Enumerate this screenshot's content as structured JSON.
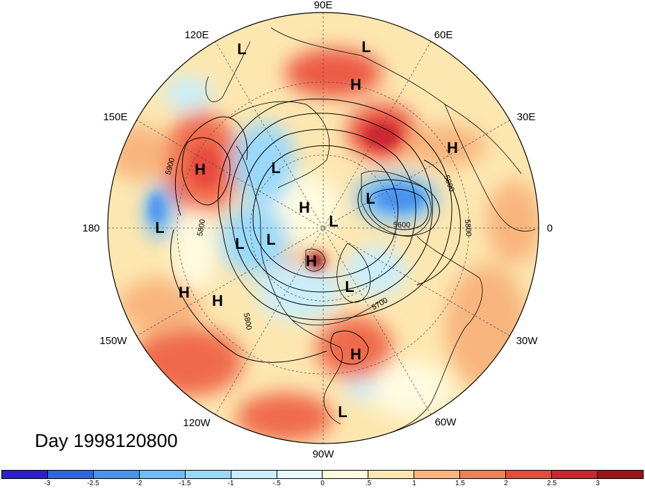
{
  "title": "Day 1998120800",
  "map": {
    "projection": "polar stereographic (north pole)",
    "longitude_labels": [
      "90E",
      "60E",
      "30E",
      "0",
      "30W",
      "60W",
      "90W",
      "120W",
      "150W",
      "180",
      "150E",
      "120E"
    ],
    "contour_labels": [
      "5900",
      "5800",
      "5800",
      "5800",
      "5600",
      "5800",
      "5700"
    ],
    "pressure_centers": [
      {
        "type": "L"
      },
      {
        "type": "L"
      },
      {
        "type": "H"
      },
      {
        "type": "H"
      },
      {
        "type": "H"
      },
      {
        "type": "L"
      },
      {
        "type": "L"
      },
      {
        "type": "H"
      },
      {
        "type": "L"
      },
      {
        "type": "L"
      },
      {
        "type": "L"
      },
      {
        "type": "L"
      },
      {
        "type": "H"
      },
      {
        "type": "H"
      },
      {
        "type": "H"
      },
      {
        "type": "L"
      },
      {
        "type": "H"
      },
      {
        "type": "L"
      }
    ]
  },
  "colorbar": {
    "tick_labels": [
      "-3",
      "-2.5",
      "-2",
      "-1.5",
      "-1",
      "-.5",
      "0",
      ".5",
      "1",
      "1.5",
      "2",
      "2.5",
      "3"
    ],
    "colors": [
      "#2b1fd1",
      "#3163e4",
      "#4b93ee",
      "#70bbf5",
      "#9ad9fa",
      "#c9eefc",
      "#e6f7fd",
      "#fffbe0",
      "#fde7b0",
      "#f8b57e",
      "#f27f58",
      "#e84b3d",
      "#cc2630",
      "#a0101c"
    ]
  }
}
